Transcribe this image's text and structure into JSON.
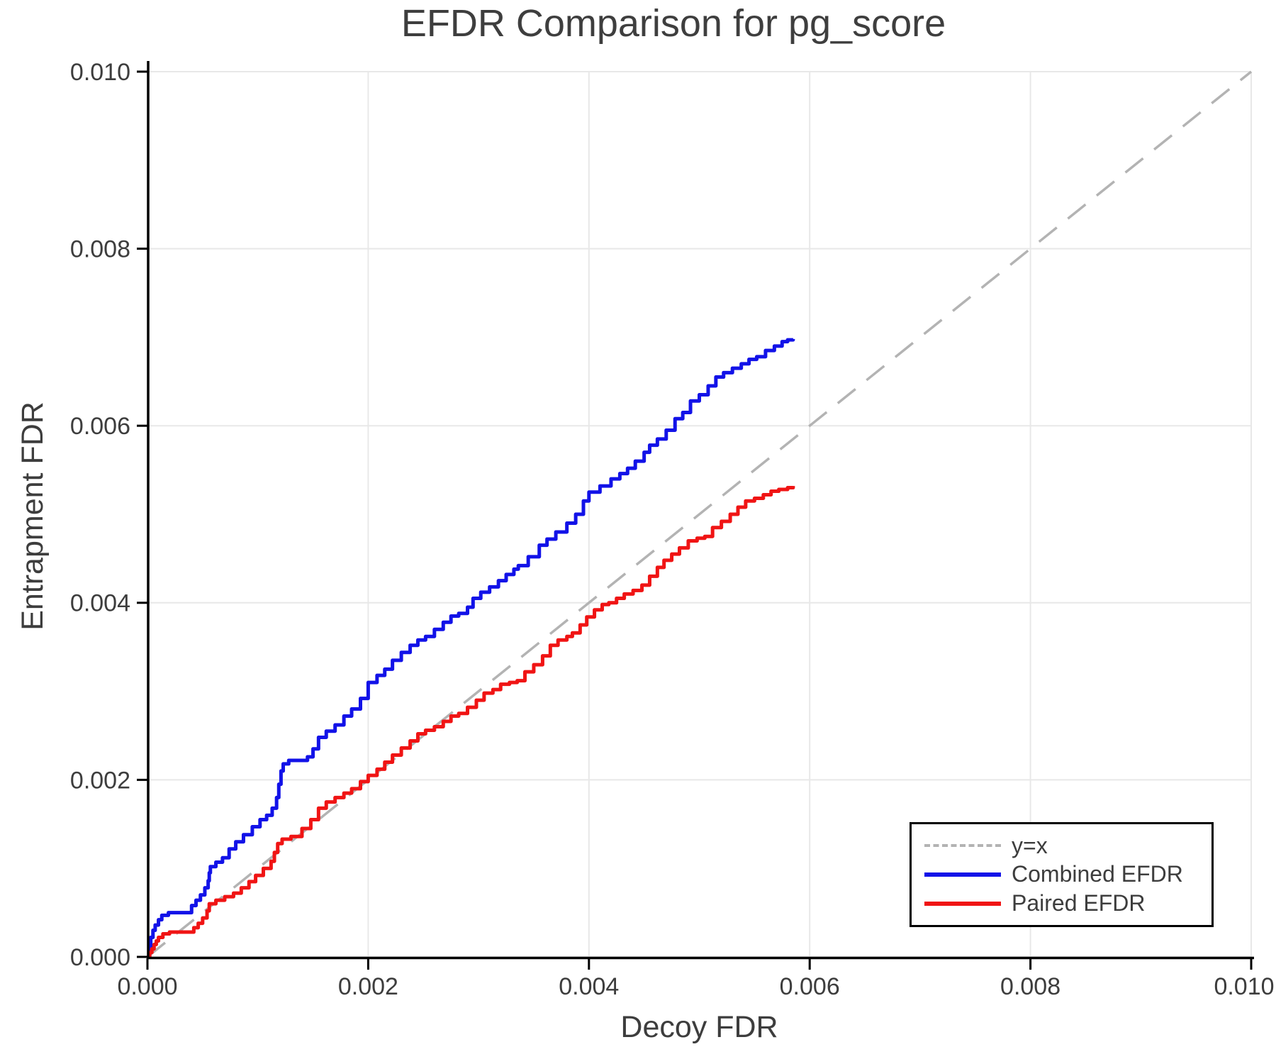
{
  "title": "EFDR Comparison for pg_score",
  "colors": {
    "background": "#ffffff",
    "axis": "#000000",
    "grid": "#e8e8e8",
    "text": "#3d3d3d",
    "identity": "#b3b3b3",
    "combined": "#1212e8",
    "paired": "#f01414"
  },
  "chart_data": {
    "type": "line",
    "title": "EFDR Comparison for pg_score",
    "xlabel": "Decoy FDR",
    "ylabel": "Entrapment FDR",
    "xlim": [
      0,
      0.01
    ],
    "ylim": [
      0,
      0.01
    ],
    "grid": true,
    "legend_position": "lower right",
    "xticks": [
      0,
      0.002,
      0.004,
      0.006,
      0.008,
      0.01
    ],
    "xtick_labels": [
      "0.000",
      "0.002",
      "0.004",
      "0.006",
      "0.008",
      "0.010"
    ],
    "yticks": [
      0,
      0.002,
      0.004,
      0.006,
      0.008,
      0.01
    ],
    "ytick_labels": [
      "0.000",
      "0.002",
      "0.004",
      "0.006",
      "0.008",
      "0.010"
    ],
    "points_scale": 0.001,
    "series": [
      {
        "name": "y=x",
        "style": "dashed",
        "color": "#b3b3b3",
        "points": [
          [
            0,
            0
          ],
          [
            10,
            10
          ]
        ]
      },
      {
        "name": "Combined EFDR",
        "style": "step",
        "color": "#1212e8",
        "points": [
          [
            0.0,
            0.0
          ],
          [
            0.02,
            0.1
          ],
          [
            0.03,
            0.22
          ],
          [
            0.05,
            0.3
          ],
          [
            0.07,
            0.36
          ],
          [
            0.1,
            0.42
          ],
          [
            0.13,
            0.47
          ],
          [
            0.19,
            0.5
          ],
          [
            0.36,
            0.5
          ],
          [
            0.4,
            0.58
          ],
          [
            0.44,
            0.64
          ],
          [
            0.48,
            0.7
          ],
          [
            0.52,
            0.78
          ],
          [
            0.55,
            0.86
          ],
          [
            0.56,
            0.95
          ],
          [
            0.57,
            1.02
          ],
          [
            0.62,
            1.07
          ],
          [
            0.68,
            1.12
          ],
          [
            0.74,
            1.22
          ],
          [
            0.8,
            1.3
          ],
          [
            0.87,
            1.38
          ],
          [
            0.95,
            1.47
          ],
          [
            1.02,
            1.55
          ],
          [
            1.08,
            1.6
          ],
          [
            1.13,
            1.68
          ],
          [
            1.17,
            1.8
          ],
          [
            1.19,
            1.95
          ],
          [
            1.21,
            2.1
          ],
          [
            1.23,
            2.18
          ],
          [
            1.28,
            2.22
          ],
          [
            1.45,
            2.26
          ],
          [
            1.5,
            2.35
          ],
          [
            1.55,
            2.48
          ],
          [
            1.62,
            2.55
          ],
          [
            1.7,
            2.62
          ],
          [
            1.78,
            2.72
          ],
          [
            1.85,
            2.8
          ],
          [
            1.93,
            2.92
          ],
          [
            2.0,
            3.1
          ],
          [
            2.08,
            3.18
          ],
          [
            2.15,
            3.25
          ],
          [
            2.22,
            3.35
          ],
          [
            2.3,
            3.44
          ],
          [
            2.38,
            3.52
          ],
          [
            2.45,
            3.58
          ],
          [
            2.52,
            3.62
          ],
          [
            2.6,
            3.7
          ],
          [
            2.68,
            3.78
          ],
          [
            2.75,
            3.85
          ],
          [
            2.82,
            3.88
          ],
          [
            2.9,
            3.95
          ],
          [
            2.95,
            4.05
          ],
          [
            3.02,
            4.12
          ],
          [
            3.1,
            4.18
          ],
          [
            3.18,
            4.25
          ],
          [
            3.25,
            4.32
          ],
          [
            3.32,
            4.38
          ],
          [
            3.36,
            4.42
          ],
          [
            3.45,
            4.52
          ],
          [
            3.55,
            4.65
          ],
          [
            3.62,
            4.72
          ],
          [
            3.7,
            4.8
          ],
          [
            3.8,
            4.9
          ],
          [
            3.88,
            5.0
          ],
          [
            3.95,
            5.15
          ],
          [
            4.0,
            5.25
          ],
          [
            4.1,
            5.32
          ],
          [
            4.2,
            5.4
          ],
          [
            4.28,
            5.46
          ],
          [
            4.35,
            5.52
          ],
          [
            4.42,
            5.6
          ],
          [
            4.5,
            5.7
          ],
          [
            4.55,
            5.78
          ],
          [
            4.62,
            5.85
          ],
          [
            4.7,
            5.95
          ],
          [
            4.78,
            6.08
          ],
          [
            4.85,
            6.15
          ],
          [
            4.92,
            6.28
          ],
          [
            5.0,
            6.35
          ],
          [
            5.08,
            6.45
          ],
          [
            5.15,
            6.55
          ],
          [
            5.22,
            6.6
          ],
          [
            5.3,
            6.65
          ],
          [
            5.38,
            6.7
          ],
          [
            5.45,
            6.75
          ],
          [
            5.52,
            6.78
          ],
          [
            5.6,
            6.85
          ],
          [
            5.68,
            6.9
          ],
          [
            5.75,
            6.95
          ],
          [
            5.8,
            6.97
          ],
          [
            5.85,
            6.98
          ]
        ]
      },
      {
        "name": "Paired EFDR",
        "style": "step",
        "color": "#f01414",
        "points": [
          [
            0.0,
            0.0
          ],
          [
            0.02,
            0.05
          ],
          [
            0.04,
            0.09
          ],
          [
            0.06,
            0.14
          ],
          [
            0.08,
            0.18
          ],
          [
            0.1,
            0.22
          ],
          [
            0.14,
            0.26
          ],
          [
            0.2,
            0.28
          ],
          [
            0.38,
            0.28
          ],
          [
            0.42,
            0.33
          ],
          [
            0.46,
            0.38
          ],
          [
            0.5,
            0.44
          ],
          [
            0.54,
            0.52
          ],
          [
            0.56,
            0.6
          ],
          [
            0.62,
            0.64
          ],
          [
            0.7,
            0.68
          ],
          [
            0.78,
            0.72
          ],
          [
            0.85,
            0.78
          ],
          [
            0.92,
            0.85
          ],
          [
            0.98,
            0.92
          ],
          [
            1.05,
            1.0
          ],
          [
            1.12,
            1.08
          ],
          [
            1.15,
            1.18
          ],
          [
            1.18,
            1.28
          ],
          [
            1.22,
            1.33
          ],
          [
            1.3,
            1.36
          ],
          [
            1.4,
            1.45
          ],
          [
            1.48,
            1.55
          ],
          [
            1.55,
            1.68
          ],
          [
            1.62,
            1.75
          ],
          [
            1.7,
            1.8
          ],
          [
            1.78,
            1.85
          ],
          [
            1.85,
            1.9
          ],
          [
            1.93,
            1.98
          ],
          [
            2.0,
            2.05
          ],
          [
            2.08,
            2.12
          ],
          [
            2.15,
            2.2
          ],
          [
            2.22,
            2.28
          ],
          [
            2.3,
            2.36
          ],
          [
            2.38,
            2.44
          ],
          [
            2.45,
            2.52
          ],
          [
            2.52,
            2.56
          ],
          [
            2.6,
            2.6
          ],
          [
            2.68,
            2.66
          ],
          [
            2.75,
            2.72
          ],
          [
            2.82,
            2.75
          ],
          [
            2.9,
            2.82
          ],
          [
            2.98,
            2.9
          ],
          [
            3.05,
            2.98
          ],
          [
            3.13,
            3.02
          ],
          [
            3.2,
            3.08
          ],
          [
            3.28,
            3.1
          ],
          [
            3.35,
            3.12
          ],
          [
            3.42,
            3.22
          ],
          [
            3.5,
            3.3
          ],
          [
            3.58,
            3.4
          ],
          [
            3.65,
            3.52
          ],
          [
            3.72,
            3.58
          ],
          [
            3.8,
            3.62
          ],
          [
            3.85,
            3.66
          ],
          [
            3.92,
            3.75
          ],
          [
            3.98,
            3.84
          ],
          [
            4.05,
            3.92
          ],
          [
            4.12,
            3.98
          ],
          [
            4.18,
            4.0
          ],
          [
            4.25,
            4.05
          ],
          [
            4.32,
            4.1
          ],
          [
            4.4,
            4.14
          ],
          [
            4.48,
            4.2
          ],
          [
            4.55,
            4.3
          ],
          [
            4.62,
            4.4
          ],
          [
            4.68,
            4.48
          ],
          [
            4.75,
            4.55
          ],
          [
            4.82,
            4.62
          ],
          [
            4.9,
            4.7
          ],
          [
            4.98,
            4.73
          ],
          [
            5.05,
            4.75
          ],
          [
            5.12,
            4.85
          ],
          [
            5.2,
            4.92
          ],
          [
            5.28,
            5.0
          ],
          [
            5.35,
            5.08
          ],
          [
            5.42,
            5.15
          ],
          [
            5.5,
            5.18
          ],
          [
            5.58,
            5.22
          ],
          [
            5.65,
            5.26
          ],
          [
            5.72,
            5.28
          ],
          [
            5.8,
            5.3
          ],
          [
            5.85,
            5.32
          ]
        ]
      }
    ]
  }
}
